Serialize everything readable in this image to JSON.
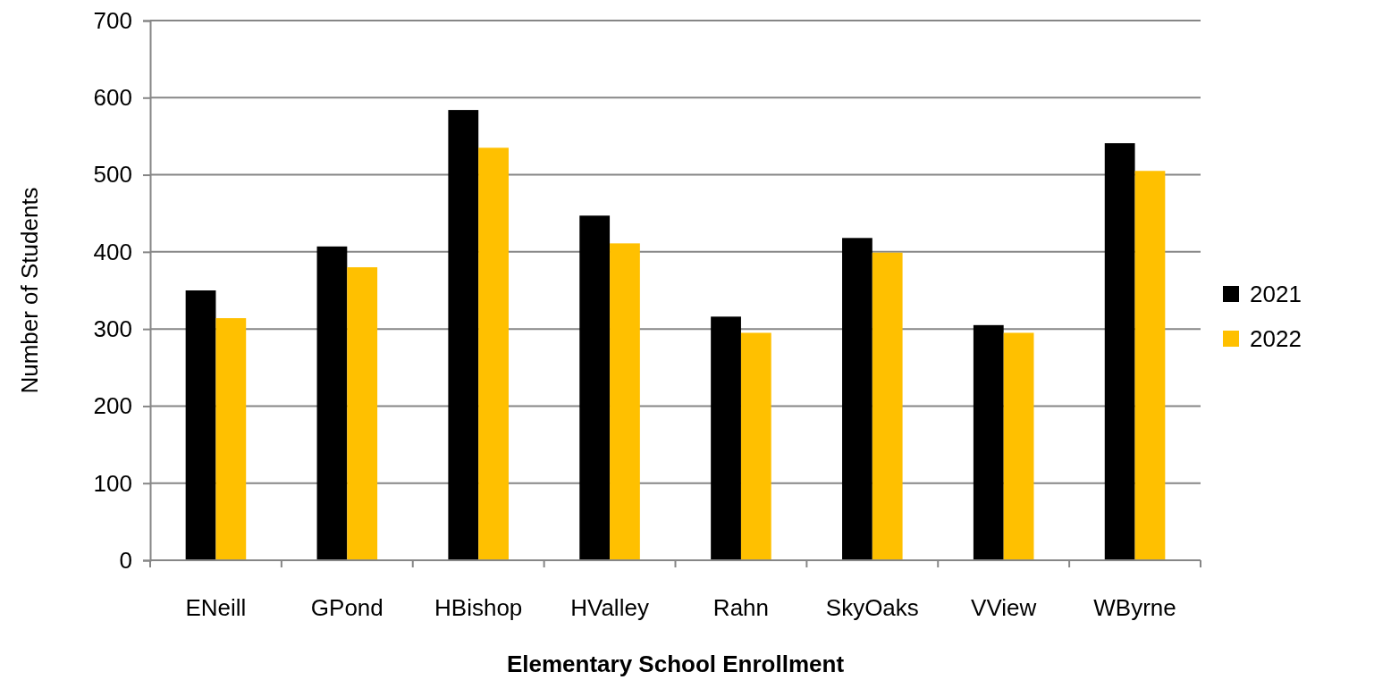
{
  "chart_data": {
    "type": "bar",
    "xlabel": "Elementary School Enrollment",
    "ylabel": "Number of Students",
    "categories": [
      "ENeill",
      "GPond",
      "HBishop",
      "HValley",
      "Rahn",
      "SkyOaks",
      "VView",
      "WByrne"
    ],
    "series": [
      {
        "name": "2021",
        "color": "#000000",
        "values": [
          350,
          407,
          584,
          447,
          316,
          418,
          305,
          541
        ]
      },
      {
        "name": "2022",
        "color": "#ffc000",
        "values": [
          314,
          380,
          535,
          411,
          295,
          399,
          295,
          505
        ]
      }
    ],
    "ylim": [
      0,
      700
    ],
    "yticks": [
      0,
      100,
      200,
      300,
      400,
      500,
      600,
      700
    ],
    "grid": "y",
    "legend": "right"
  }
}
